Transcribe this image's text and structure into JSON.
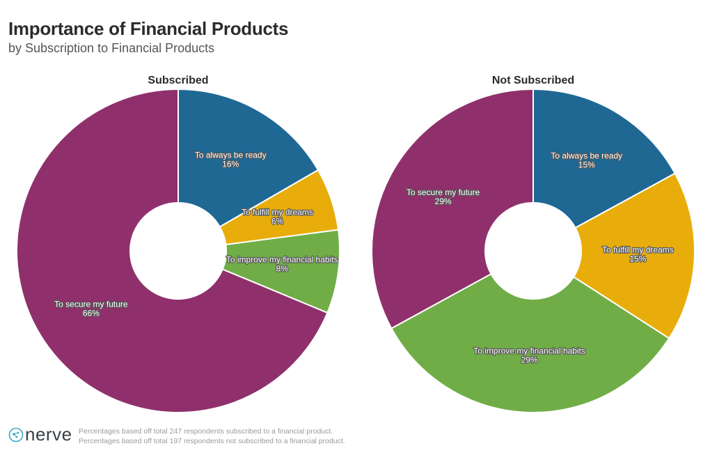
{
  "title": "Importance of Financial Products",
  "subtitle": "by Subscription to Financial Products",
  "chart_data": [
    {
      "type": "pie",
      "donut": true,
      "title": "Subscribed",
      "slices": [
        {
          "label": "To always be ready",
          "value": 16,
          "value_label": "16%",
          "color": "#1f6894"
        },
        {
          "label": "To fulfill my dreams",
          "value": 6,
          "value_label": "6%",
          "color": "#e8ad0b"
        },
        {
          "label": "To improve my financial habits",
          "value": 8,
          "value_label": "8%",
          "color": "#70ad47"
        },
        {
          "label": "To secure my future",
          "value": 66,
          "value_label": "66%",
          "color": "#8f306c"
        }
      ]
    },
    {
      "type": "pie",
      "donut": true,
      "title": "Not Subscribed",
      "slices": [
        {
          "label": "To always be ready",
          "value": 15,
          "value_label": "15%",
          "color": "#1f6894"
        },
        {
          "label": "To fulfill my dreams",
          "value": 15,
          "value_label": "15%",
          "color": "#e8ad0b"
        },
        {
          "label": "To improve my financial habits",
          "value": 29,
          "value_label": "29%",
          "color": "#70ad47"
        },
        {
          "label": "To secure my future",
          "value": 29,
          "value_label": "29%",
          "color": "#8f306c"
        }
      ]
    }
  ],
  "footer": {
    "logo_text": "nerve",
    "note_1": "Percentages based off total 247 respondents subscribed to a financial product.",
    "note_2": "Percentages based off total 197 respondents not subscribed to a financial product."
  }
}
